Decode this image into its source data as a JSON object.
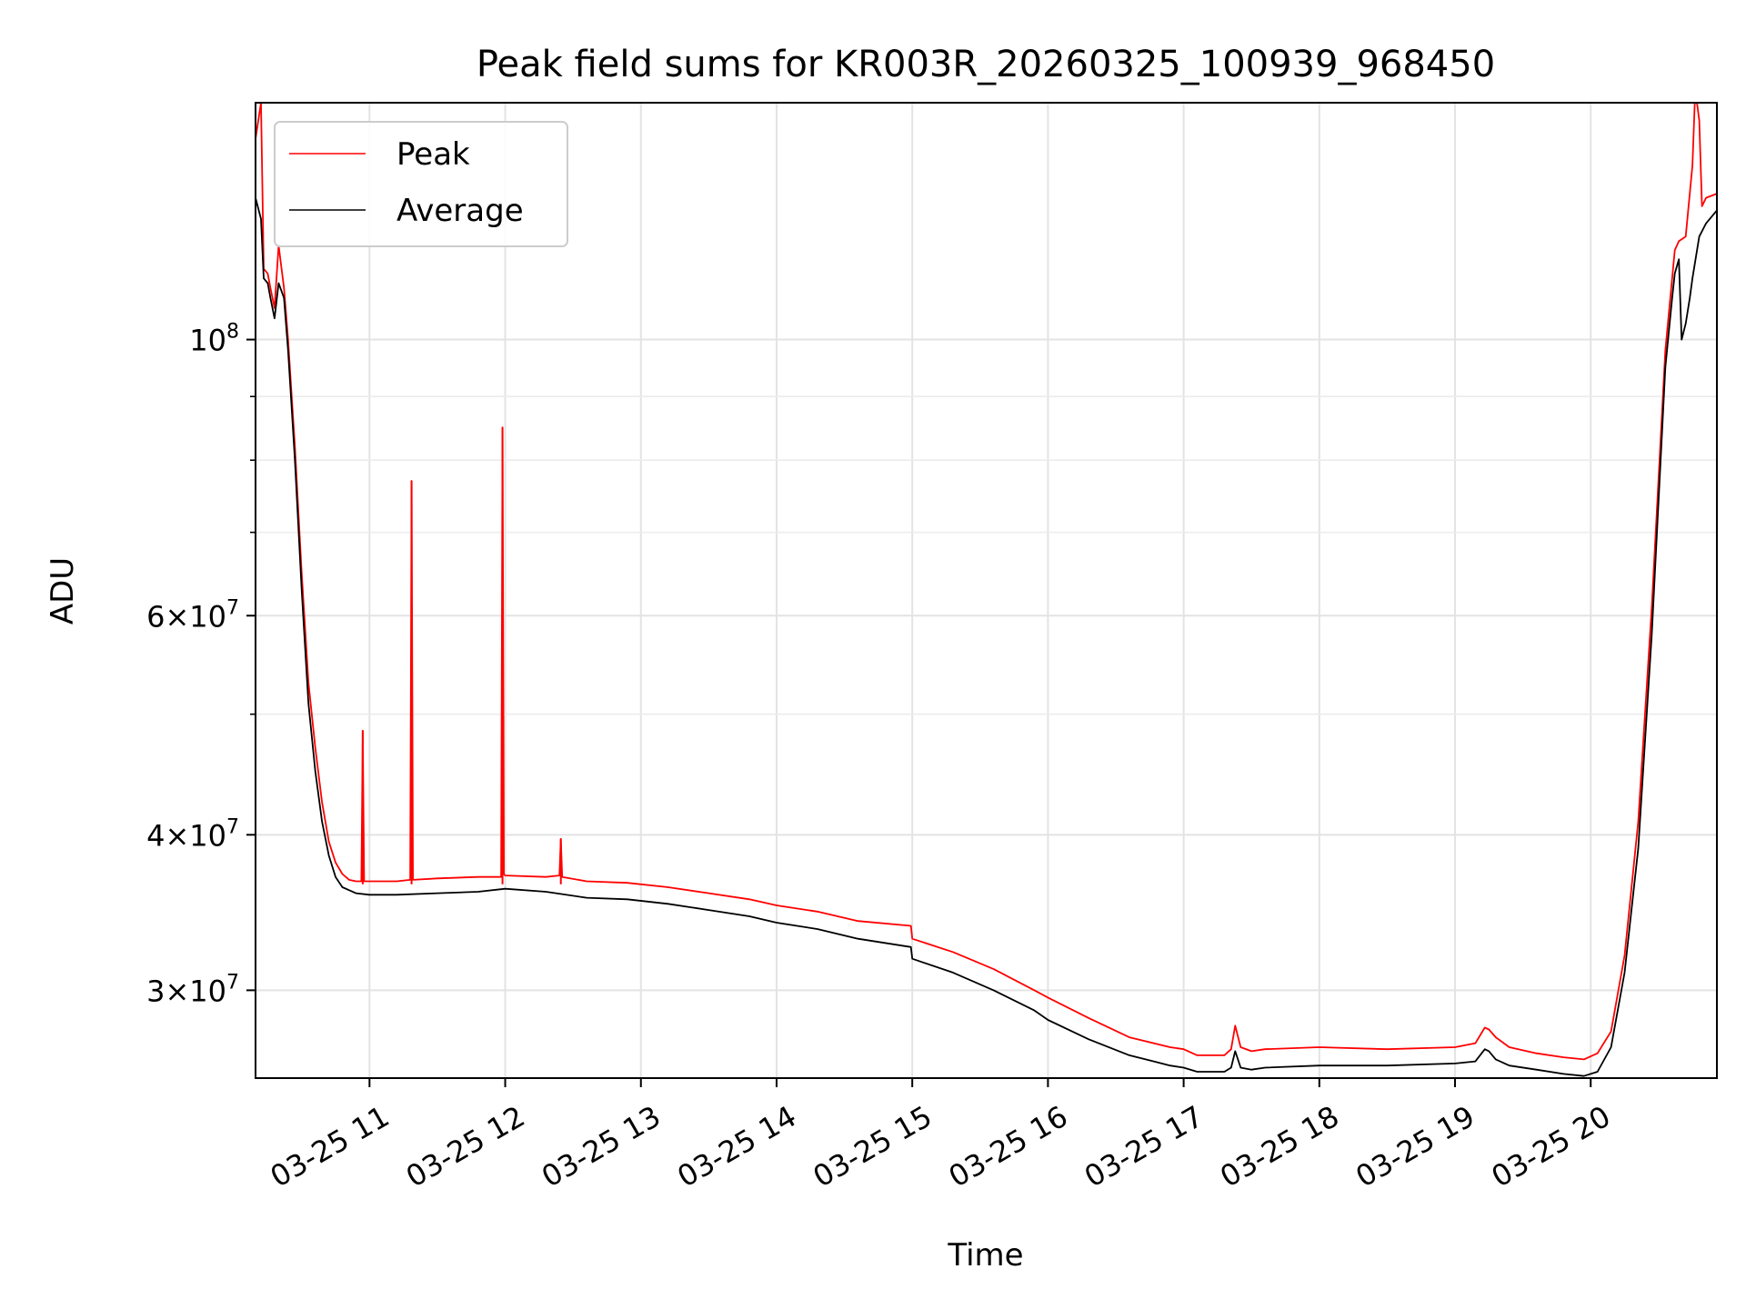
{
  "chart_data": {
    "type": "line",
    "title": "Peak field sums for KR003R_20260325_100939_968450",
    "xlabel": "Time",
    "ylabel": "ADU",
    "yscale": "log",
    "xlim": [
      10.16,
      20.93
    ],
    "ylim": [
      25500000,
      155000000
    ],
    "grid": true,
    "legend_position": "upper-left",
    "x_ticks": [
      {
        "value": 11,
        "label": "03-25 11"
      },
      {
        "value": 12,
        "label": "03-25 12"
      },
      {
        "value": 13,
        "label": "03-25 13"
      },
      {
        "value": 14,
        "label": "03-25 14"
      },
      {
        "value": 15,
        "label": "03-25 15"
      },
      {
        "value": 16,
        "label": "03-25 16"
      },
      {
        "value": 17,
        "label": "03-25 17"
      },
      {
        "value": 18,
        "label": "03-25 18"
      },
      {
        "value": 19,
        "label": "03-25 19"
      },
      {
        "value": 20,
        "label": "03-25 20"
      }
    ],
    "y_ticks": [
      {
        "value": 30000000,
        "base": "3×10",
        "exp": "7"
      },
      {
        "value": 40000000,
        "base": "4×10",
        "exp": "7"
      },
      {
        "value": 60000000,
        "base": "6×10",
        "exp": "7"
      },
      {
        "value": 100000000,
        "base": "10",
        "exp": "8"
      }
    ],
    "y_minor_ticks": [
      50000000,
      70000000,
      80000000,
      90000000
    ],
    "series": [
      {
        "name": "Average",
        "color": "#000000",
        "x": [
          10.16,
          10.2,
          10.22,
          10.25,
          10.27,
          10.3,
          10.33,
          10.37,
          10.4,
          10.45,
          10.5,
          10.55,
          10.6,
          10.65,
          10.7,
          10.75,
          10.8,
          10.85,
          10.9,
          11.0,
          11.2,
          11.5,
          11.8,
          12.0,
          12.3,
          12.6,
          12.9,
          13.2,
          13.5,
          13.8,
          14.0,
          14.3,
          14.6,
          14.99,
          15.0,
          15.3,
          15.6,
          15.9,
          16.0,
          16.3,
          16.6,
          16.9,
          17.0,
          17.1,
          17.3,
          17.35,
          17.38,
          17.42,
          17.5,
          17.6,
          18.0,
          18.5,
          19.0,
          19.15,
          19.22,
          19.25,
          19.3,
          19.4,
          19.6,
          19.8,
          19.95,
          20.05,
          20.15,
          20.25,
          20.35,
          20.45,
          20.55,
          20.6,
          20.62,
          20.65,
          20.67,
          20.7,
          20.73,
          20.75,
          20.8,
          20.85,
          20.93
        ],
        "y": [
          130000000,
          125000000,
          112000000,
          111000000,
          108000000,
          104000000,
          111000000,
          108000000,
          98000000,
          80000000,
          63000000,
          51000000,
          45000000,
          41000000,
          38500000,
          37000000,
          36300000,
          36100000,
          35900000,
          35800000,
          35800000,
          35900000,
          36000000,
          36200000,
          36000000,
          35600000,
          35500000,
          35200000,
          34800000,
          34400000,
          34000000,
          33600000,
          33000000,
          32500000,
          31800000,
          31000000,
          30000000,
          28900000,
          28400000,
          27400000,
          26600000,
          26100000,
          26000000,
          25800000,
          25800000,
          26000000,
          26800000,
          26000000,
          25900000,
          26000000,
          26100000,
          26100000,
          26200000,
          26300000,
          26900000,
          26800000,
          26400000,
          26100000,
          25900000,
          25700000,
          25600000,
          25800000,
          27000000,
          31000000,
          39000000,
          58000000,
          95000000,
          108000000,
          113000000,
          116000000,
          100000000,
          103000000,
          108000000,
          112000000,
          121000000,
          124000000,
          127000000
        ]
      },
      {
        "name": "Peak",
        "color": "#ff0000",
        "x": [
          10.16,
          10.2,
          10.21,
          10.22,
          10.25,
          10.27,
          10.3,
          10.33,
          10.37,
          10.4,
          10.45,
          10.5,
          10.55,
          10.6,
          10.65,
          10.7,
          10.75,
          10.8,
          10.85,
          10.9,
          10.94,
          10.95,
          10.96,
          11.0,
          11.2,
          11.3,
          11.31,
          11.32,
          11.5,
          11.8,
          11.97,
          11.98,
          11.99,
          12.0,
          12.3,
          12.4,
          12.41,
          12.42,
          12.6,
          12.9,
          13.2,
          13.5,
          13.8,
          14.0,
          14.3,
          14.6,
          14.99,
          15.0,
          15.3,
          15.6,
          15.9,
          16.0,
          16.3,
          16.6,
          16.9,
          17.0,
          17.1,
          17.3,
          17.35,
          17.38,
          17.42,
          17.5,
          17.6,
          18.0,
          18.5,
          19.0,
          19.15,
          19.22,
          19.25,
          19.3,
          19.4,
          19.6,
          19.8,
          19.95,
          20.05,
          20.15,
          20.25,
          20.35,
          20.45,
          20.55,
          20.6,
          20.62,
          20.65,
          20.7,
          20.75,
          20.77,
          20.78,
          20.8,
          20.82,
          20.85,
          20.93
        ],
        "y": [
          145000000,
          155000000,
          133000000,
          114000000,
          113000000,
          110000000,
          106000000,
          119000000,
          110000000,
          100000000,
          82000000,
          65000000,
          53000000,
          47000000,
          42500000,
          39500000,
          38000000,
          37200000,
          36800000,
          36700000,
          36700000,
          48500000,
          36700000,
          36700000,
          36700000,
          36800000,
          77000000,
          36800000,
          36900000,
          37000000,
          37000000,
          85000000,
          37200000,
          37100000,
          37000000,
          37100000,
          39700000,
          37000000,
          36700000,
          36600000,
          36300000,
          35900000,
          35500000,
          35100000,
          34700000,
          34100000,
          33800000,
          33000000,
          32200000,
          31200000,
          30000000,
          29600000,
          28500000,
          27500000,
          27000000,
          26900000,
          26600000,
          26600000,
          26900000,
          28100000,
          27000000,
          26800000,
          26900000,
          27000000,
          26900000,
          27000000,
          27200000,
          28000000,
          27900000,
          27500000,
          27000000,
          26700000,
          26500000,
          26400000,
          26700000,
          27800000,
          32000000,
          41000000,
          61000000,
          98000000,
          112000000,
          118000000,
          120000000,
          121000000,
          138000000,
          158000000,
          156000000,
          150000000,
          128000000,
          130000000,
          131000000
        ]
      }
    ],
    "spikes": [
      {
        "series": "Peak",
        "x": 10.95,
        "y": 48500000
      },
      {
        "series": "Peak",
        "x": 11.31,
        "y": 77000000
      },
      {
        "series": "Peak",
        "x": 11.98,
        "y": 85000000
      },
      {
        "series": "Peak",
        "x": 12.41,
        "y": 39700000
      }
    ]
  }
}
